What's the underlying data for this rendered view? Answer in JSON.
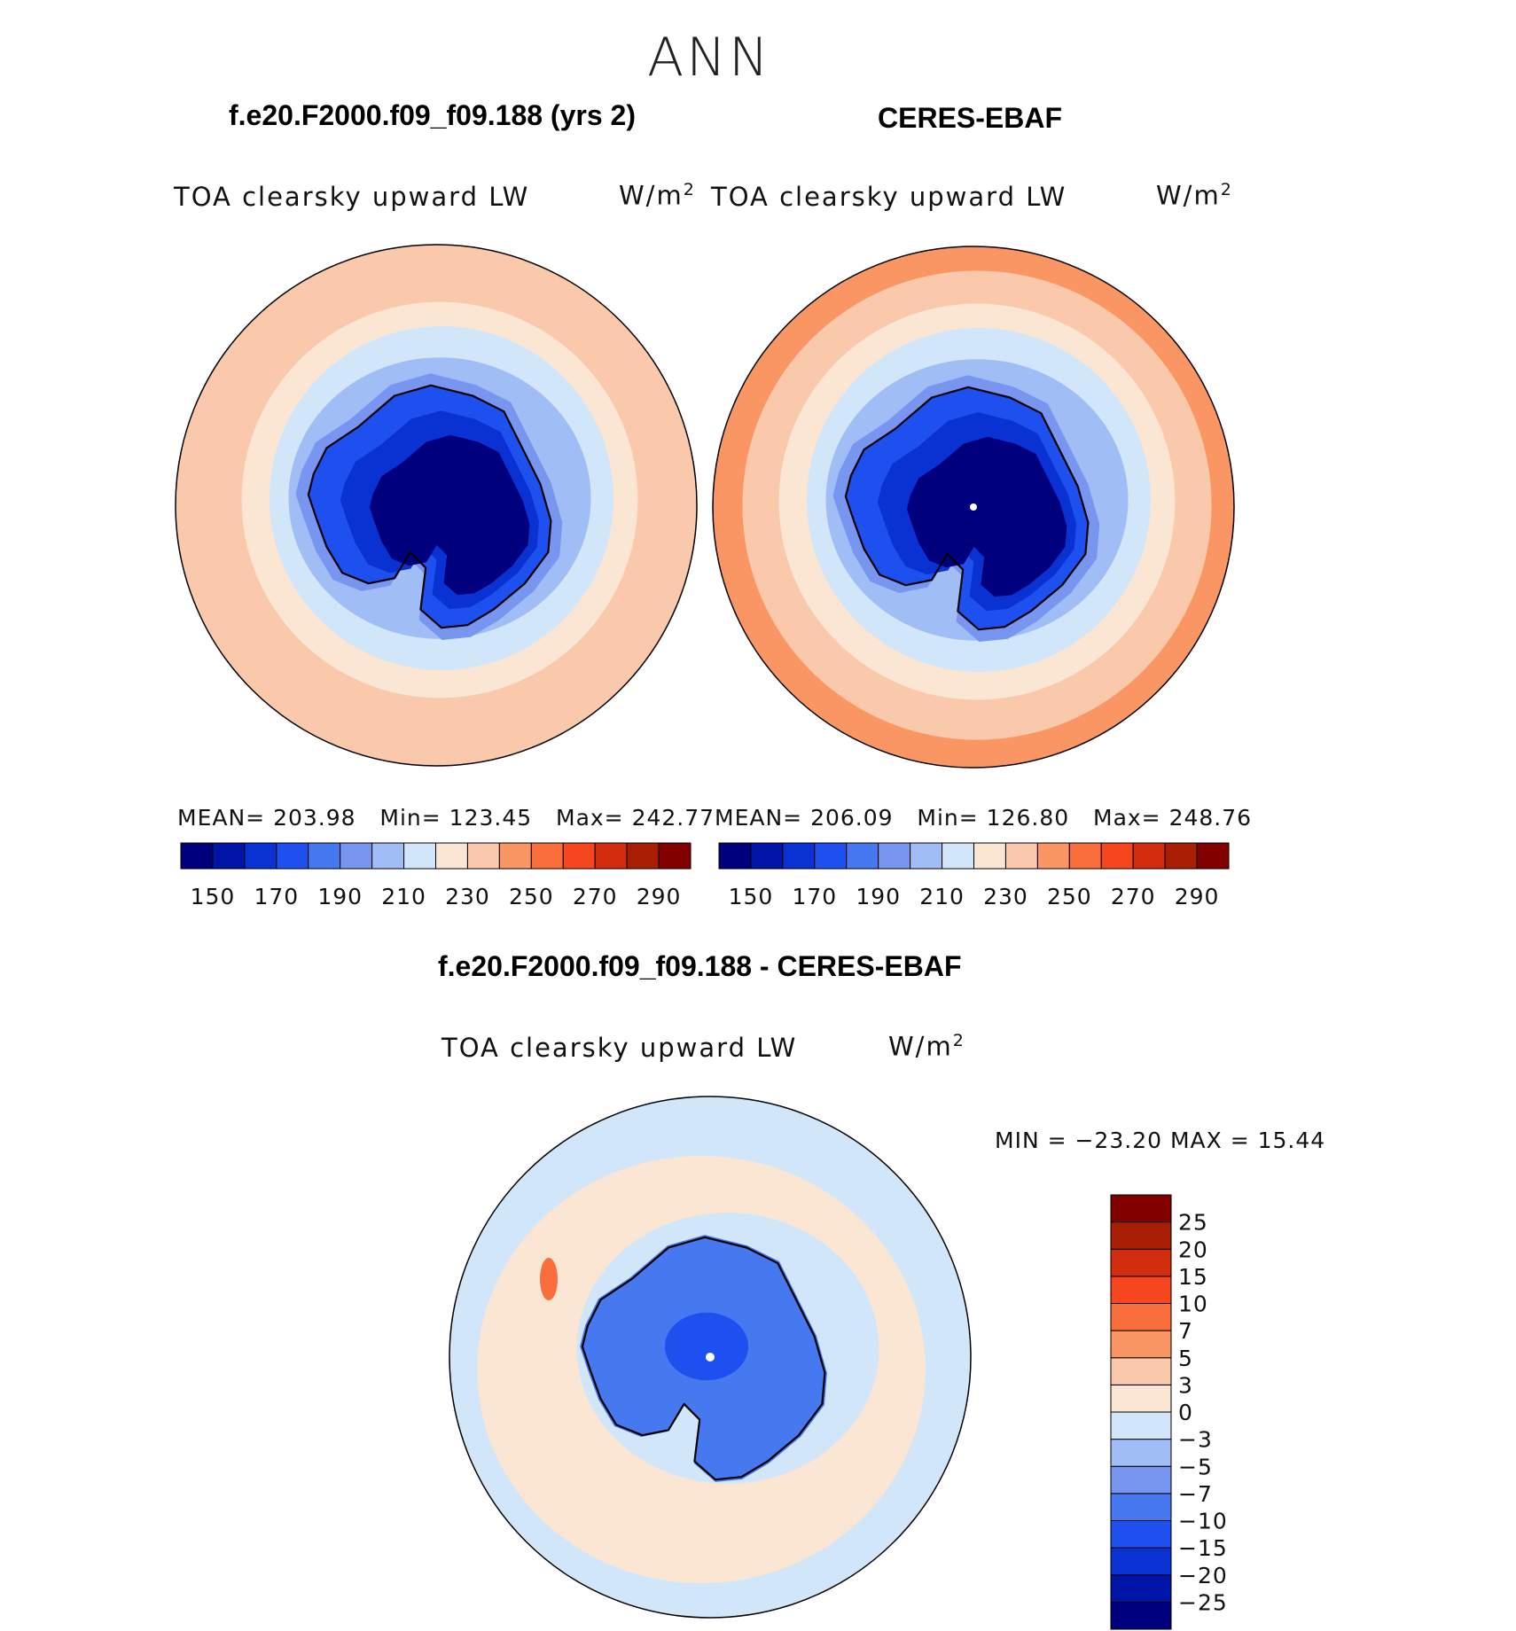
{
  "season": "ANN",
  "panels": [
    {
      "id": "model",
      "title": "f.e20.F2000.f09_f09.188 (yrs 2)",
      "variable": "TOA clearsky upward LW",
      "units_base": "W/m",
      "units_exp": "2",
      "stats": {
        "mean_label": "MEAN=",
        "mean": "203.98",
        "min_label": "Min=",
        "min": "123.45",
        "max_label": "Max=",
        "max": "242.77"
      }
    },
    {
      "id": "obs",
      "title": "CERES-EBAF",
      "variable": "TOA clearsky upward LW",
      "units_base": "W/m",
      "units_exp": "2",
      "stats": {
        "mean_label": "MEAN=",
        "mean": "206.09",
        "min_label": "Min=",
        "min": "126.80",
        "max_label": "Max=",
        "max": "248.76"
      }
    }
  ],
  "diff": {
    "title": "f.e20.F2000.f09_f09.188 - CERES-EBAF",
    "variable": "TOA clearsky upward LW",
    "units_base": "W/m",
    "units_exp": "2",
    "minmax": "MIN = −23.20 MAX =  15.44"
  },
  "horizontal_colorbar": {
    "colors": [
      "#00007f",
      "#0014a8",
      "#0a32d2",
      "#1e50f0",
      "#4678f0",
      "#7896f0",
      "#a0bef5",
      "#d2e6fa",
      "#fae6d2",
      "#fac8aa",
      "#fa9664",
      "#fa6e3c",
      "#f5461e",
      "#d22d0f",
      "#aa1e05",
      "#820000"
    ],
    "labels": [
      "150",
      "170",
      "190",
      "210",
      "230",
      "250",
      "270",
      "290"
    ]
  },
  "vertical_colorbar": {
    "colors": [
      "#00007f",
      "#0014a8",
      "#0a32d2",
      "#1e50f0",
      "#4678f0",
      "#7896f0",
      "#a0bef5",
      "#d2e6fa",
      "#fae6d2",
      "#fac8aa",
      "#fa9664",
      "#fa6e3c",
      "#f5461e",
      "#d22d0f",
      "#aa1e05",
      "#820000"
    ],
    "labels": [
      "−25",
      "−20",
      "−15",
      "−10",
      "−7",
      "−5",
      "−3",
      "0",
      "3",
      "5",
      "7",
      "10",
      "15",
      "20",
      "25"
    ]
  },
  "map_colors": {
    "outer": "#fac8aa",
    "ring_warm": "#fae6d2",
    "ring_cool": "#d2e6fa",
    "ring_blue": "#a0bef5",
    "ring_mid": "#7896f0",
    "ice_edge": "#1e50f0",
    "ice_mid": "#0a32d2",
    "ice_core": "#00007f",
    "outer_strong": "#fa9664",
    "diff_field": "#fae6d2",
    "diff_ocean": "#d2e6fa",
    "diff_land": "#4678f0",
    "diff_land_dark": "#1e50f0",
    "diff_pos": "#fa6e3c"
  }
}
